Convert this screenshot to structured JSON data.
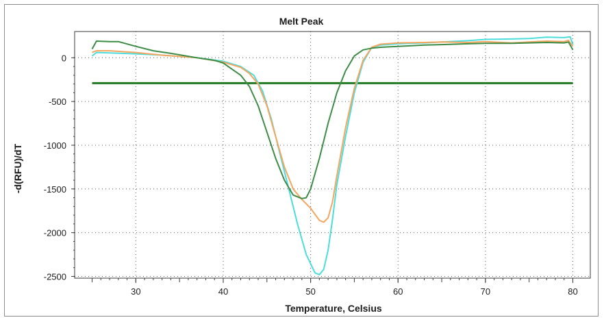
{
  "chart_data": {
    "type": "line",
    "title": "Melt Peak",
    "xlabel": "Temperature, Celsius",
    "ylabel": "-d(RFU)/dT",
    "xlim": [
      23,
      82
    ],
    "ylim": [
      -2520,
      300
    ],
    "x_ticks": [
      30,
      40,
      50,
      60,
      70,
      80
    ],
    "y_ticks": [
      0,
      -500,
      -1000,
      -1500,
      -2000,
      -2500
    ],
    "x_tick_labels": [
      "30",
      "40",
      "50",
      "60",
      "70",
      "80"
    ],
    "y_tick_labels": [
      "0",
      "-500",
      "-1000",
      "-1500",
      "-2000",
      "-2500"
    ],
    "grid": true,
    "threshold": {
      "value": -290,
      "x_range": [
        25,
        80
      ],
      "color": "#1f7a1f"
    },
    "series": [
      {
        "color": "#4bdcdc",
        "points": [
          [
            25,
            20
          ],
          [
            25.5,
            60
          ],
          [
            27,
            55
          ],
          [
            30,
            45
          ],
          [
            33,
            30
          ],
          [
            37,
            0
          ],
          [
            40,
            -40
          ],
          [
            42,
            -100
          ],
          [
            43.5,
            -200
          ],
          [
            44.5,
            -380
          ],
          [
            45.5,
            -700
          ],
          [
            46.5,
            -1100
          ],
          [
            47.5,
            -1500
          ],
          [
            48.5,
            -1900
          ],
          [
            49.5,
            -2250
          ],
          [
            50.5,
            -2460
          ],
          [
            51,
            -2480
          ],
          [
            51.5,
            -2420
          ],
          [
            52,
            -2200
          ],
          [
            52.5,
            -1850
          ],
          [
            53,
            -1450
          ],
          [
            54,
            -900
          ],
          [
            55,
            -400
          ],
          [
            56,
            -50
          ],
          [
            57,
            120
          ],
          [
            58,
            145
          ],
          [
            60,
            160
          ],
          [
            63,
            170
          ],
          [
            65,
            180
          ],
          [
            68,
            195
          ],
          [
            70,
            210
          ],
          [
            73,
            215
          ],
          [
            75,
            220
          ],
          [
            77,
            235
          ],
          [
            79,
            230
          ],
          [
            79.7,
            240
          ],
          [
            80,
            150
          ]
        ]
      },
      {
        "color": "#f4a55e",
        "points": [
          [
            25,
            60
          ],
          [
            25.5,
            80
          ],
          [
            27,
            80
          ],
          [
            30,
            60
          ],
          [
            33,
            30
          ],
          [
            37,
            0
          ],
          [
            40,
            -50
          ],
          [
            42,
            -110
          ],
          [
            43,
            -180
          ],
          [
            44,
            -300
          ],
          [
            45,
            -550
          ],
          [
            46,
            -900
          ],
          [
            47,
            -1250
          ],
          [
            48,
            -1500
          ],
          [
            49,
            -1620
          ],
          [
            50,
            -1720
          ],
          [
            51,
            -1860
          ],
          [
            51.5,
            -1880
          ],
          [
            52,
            -1830
          ],
          [
            52.5,
            -1650
          ],
          [
            53,
            -1350
          ],
          [
            54,
            -800
          ],
          [
            55,
            -350
          ],
          [
            56,
            -30
          ],
          [
            57,
            120
          ],
          [
            58,
            155
          ],
          [
            60,
            170
          ],
          [
            63,
            175
          ],
          [
            65,
            180
          ],
          [
            68,
            175
          ],
          [
            70,
            185
          ],
          [
            73,
            170
          ],
          [
            75,
            180
          ],
          [
            77,
            190
          ],
          [
            79,
            185
          ],
          [
            79.5,
            200
          ],
          [
            80,
            130
          ]
        ]
      },
      {
        "color": "#3c8c46",
        "points": [
          [
            25,
            100
          ],
          [
            25.5,
            190
          ],
          [
            27,
            185
          ],
          [
            28,
            185
          ],
          [
            30,
            130
          ],
          [
            32,
            80
          ],
          [
            34,
            50
          ],
          [
            37,
            0
          ],
          [
            39,
            -30
          ],
          [
            40,
            -60
          ],
          [
            41,
            -130
          ],
          [
            42,
            -200
          ],
          [
            43,
            -330
          ],
          [
            44,
            -550
          ],
          [
            45,
            -850
          ],
          [
            46,
            -1150
          ],
          [
            47,
            -1400
          ],
          [
            48,
            -1570
          ],
          [
            49,
            -1610
          ],
          [
            49.5,
            -1600
          ],
          [
            50,
            -1500
          ],
          [
            51,
            -1150
          ],
          [
            52,
            -750
          ],
          [
            53,
            -400
          ],
          [
            54,
            -150
          ],
          [
            55,
            20
          ],
          [
            56,
            90
          ],
          [
            57,
            110
          ],
          [
            58,
            120
          ],
          [
            60,
            130
          ],
          [
            63,
            145
          ],
          [
            65,
            150
          ],
          [
            68,
            160
          ],
          [
            70,
            165
          ],
          [
            73,
            165
          ],
          [
            75,
            170
          ],
          [
            77,
            175
          ],
          [
            79,
            170
          ],
          [
            79.5,
            180
          ],
          [
            80,
            90
          ]
        ]
      }
    ]
  }
}
